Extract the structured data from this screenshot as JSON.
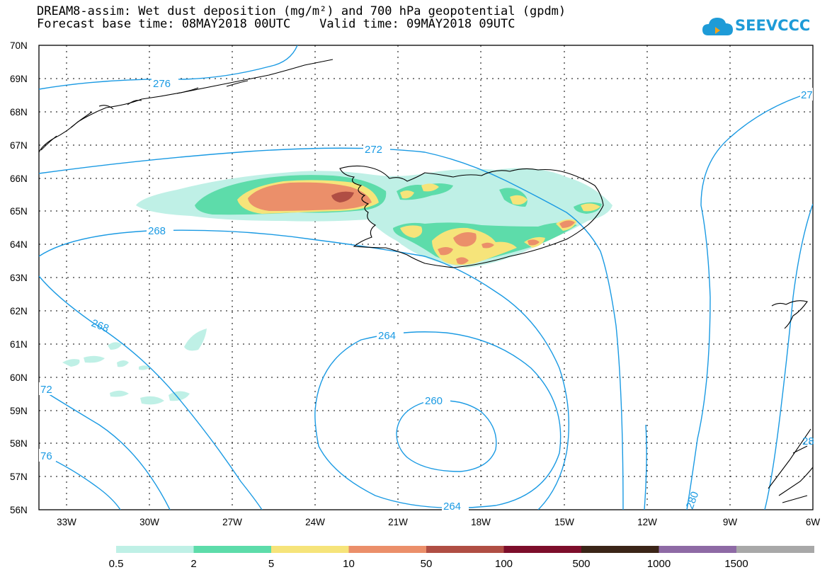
{
  "title": {
    "line1": "DREAM8-assim: Wet dust deposition (mg/m²) and 700 hPa geopotential (gpdm)",
    "line2": "Forecast base time: 08MAY2018 00UTC    Valid time: 09MAY2018 09UTC"
  },
  "logo": {
    "text": "SEEVCCC",
    "icon": "cloud-icon",
    "color": "#1e9bd7"
  },
  "map": {
    "lat_range": [
      56,
      70
    ],
    "lon_range": [
      -34,
      -6
    ],
    "lat_ticks": [
      "70N",
      "69N",
      "68N",
      "67N",
      "66N",
      "65N",
      "64N",
      "63N",
      "62N",
      "61N",
      "60N",
      "59N",
      "58N",
      "57N",
      "56N"
    ],
    "lon_ticks": [
      "33W",
      "30W",
      "27W",
      "24W",
      "21W",
      "18W",
      "15W",
      "12W",
      "9W",
      "6W"
    ],
    "contour_color": "#1a9ae3",
    "contour_labels": [
      "276",
      "272",
      "268",
      "268",
      "264",
      "260",
      "264",
      "72",
      "76",
      "280",
      "27",
      "28"
    ]
  },
  "legend": {
    "colors": [
      "#bff0e6",
      "#5ddcaa",
      "#f6e47a",
      "#eb8f6a",
      "#b04e44",
      "#7d0e2b",
      "#3b2518",
      "#8e6aa5",
      "#a8a8a8"
    ],
    "labels": [
      "0.5",
      "2",
      "5",
      "10",
      "50",
      "100",
      "500",
      "1000",
      "1500"
    ]
  }
}
